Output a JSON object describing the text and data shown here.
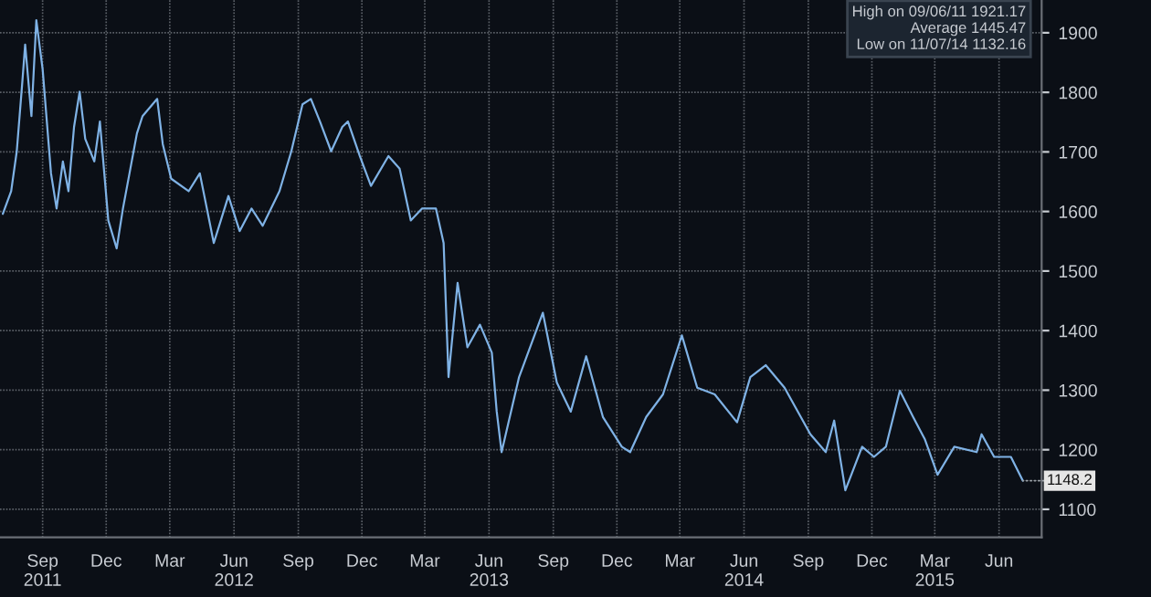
{
  "chart_data": {
    "type": "line",
    "annotations": [
      "High on 09/06/11 1921.17",
      "Average 1445.47",
      "Low on 11/07/14 1132.16",
      {
        "text": "1148.2",
        "x": "2015-07-19",
        "y": 1148
      }
    ],
    "series": [
      {
        "color": "#7fb2e5",
        "x": [
          "2011-07-20",
          "2011-08-01",
          "2011-08-09",
          "2011-08-17",
          "2011-08-21",
          "2011-08-30",
          "2011-09-06",
          "2011-09-15",
          "2011-09-27",
          "2011-10-05",
          "2011-10-14",
          "2011-10-22",
          "2011-10-30",
          "2011-11-07",
          "2011-11-15",
          "2011-11-28",
          "2011-12-06",
          "2011-12-18",
          "2011-12-30",
          "2012-01-08",
          "2012-01-28",
          "2012-02-05",
          "2012-02-26",
          "2012-03-05",
          "2012-03-17",
          "2012-04-11",
          "2012-04-27",
          "2012-05-17",
          "2012-06-07",
          "2012-06-23",
          "2012-07-10",
          "2012-07-26",
          "2012-08-19",
          "2012-09-05",
          "2012-09-21",
          "2012-10-03",
          "2012-10-16",
          "2012-11-01",
          "2012-11-17",
          "2012-11-25",
          "2012-12-12",
          "2012-12-28",
          "2013-01-22",
          "2013-02-07",
          "2013-02-23",
          "2013-03-11",
          "2013-03-31",
          "2013-04-11",
          "2013-04-18",
          "2013-05-01",
          "2013-05-15",
          "2013-06-02",
          "2013-06-19",
          "2013-06-26",
          "2013-07-03",
          "2013-07-28",
          "2013-08-31",
          "2013-09-20",
          "2013-10-10",
          "2013-11-01",
          "2013-11-25",
          "2013-12-22",
          "2014-01-03",
          "2014-01-26",
          "2014-02-19",
          "2014-03-18",
          "2014-04-09",
          "2014-05-04",
          "2014-06-05",
          "2014-06-24",
          "2014-07-16",
          "2014-08-12",
          "2014-09-18",
          "2014-10-10",
          "2014-10-22",
          "2014-11-07",
          "2014-12-01",
          "2014-12-18",
          "2015-01-04",
          "2015-01-24",
          "2015-02-12",
          "2015-03-01",
          "2015-03-19",
          "2015-04-12",
          "2015-05-14",
          "2015-05-21",
          "2015-06-08",
          "2015-07-02",
          "2015-07-19"
        ],
        "values": [
          1596,
          1634,
          1701,
          1818,
          1880,
          1760,
          1921,
          1839,
          1664,
          1605,
          1684,
          1634,
          1742,
          1801,
          1722,
          1684,
          1751,
          1585,
          1538,
          1605,
          1731,
          1760,
          1789,
          1713,
          1655,
          1634,
          1664,
          1547,
          1626,
          1567,
          1605,
          1576,
          1634,
          1701,
          1780,
          1789,
          1751,
          1701,
          1742,
          1751,
          1693,
          1643,
          1693,
          1672,
          1585,
          1605,
          1605,
          1547,
          1322,
          1480,
          1372,
          1410,
          1363,
          1264,
          1196,
          1322,
          1430,
          1313,
          1264,
          1357,
          1255,
          1205,
          1196,
          1255,
          1293,
          1392,
          1304,
          1293,
          1246,
          1322,
          1342,
          1304,
          1226,
          1196,
          1249,
          1132,
          1205,
          1188,
          1205,
          1299,
          1255,
          1217,
          1158,
          1205,
          1196,
          1226,
          1188,
          1188,
          1148
        ]
      }
    ],
    "xlim": [
      "2011-07-16",
      "2015-08-15"
    ],
    "ylim": [
      1053,
      1955
    ],
    "xticks": [
      {
        "value": "2011-09-15",
        "label": "Sep\n2011"
      },
      {
        "value": "2011-12-15",
        "label": "Dec"
      },
      {
        "value": "2012-03-15",
        "label": "Mar"
      },
      {
        "value": "2012-06-15",
        "label": "Jun\n2012"
      },
      {
        "value": "2012-09-15",
        "label": "Sep"
      },
      {
        "value": "2012-12-15",
        "label": "Dec"
      },
      {
        "value": "2013-03-15",
        "label": "Mar"
      },
      {
        "value": "2013-06-15",
        "label": "Jun\n2013"
      },
      {
        "value": "2013-09-15",
        "label": "Sep"
      },
      {
        "value": "2013-12-15",
        "label": "Dec"
      },
      {
        "value": "2014-03-15",
        "label": "Mar"
      },
      {
        "value": "2014-06-15",
        "label": "Jun\n2014"
      },
      {
        "value": "2014-09-15",
        "label": "Sep"
      },
      {
        "value": "2014-12-15",
        "label": "Dec"
      },
      {
        "value": "2015-03-15",
        "label": "Mar\n2015"
      },
      {
        "value": "2015-06-15",
        "label": "Jun"
      }
    ],
    "yticks": [
      1100,
      1200,
      1300,
      1400,
      1500,
      1600,
      1700,
      1800,
      1900
    ],
    "grid": true
  }
}
